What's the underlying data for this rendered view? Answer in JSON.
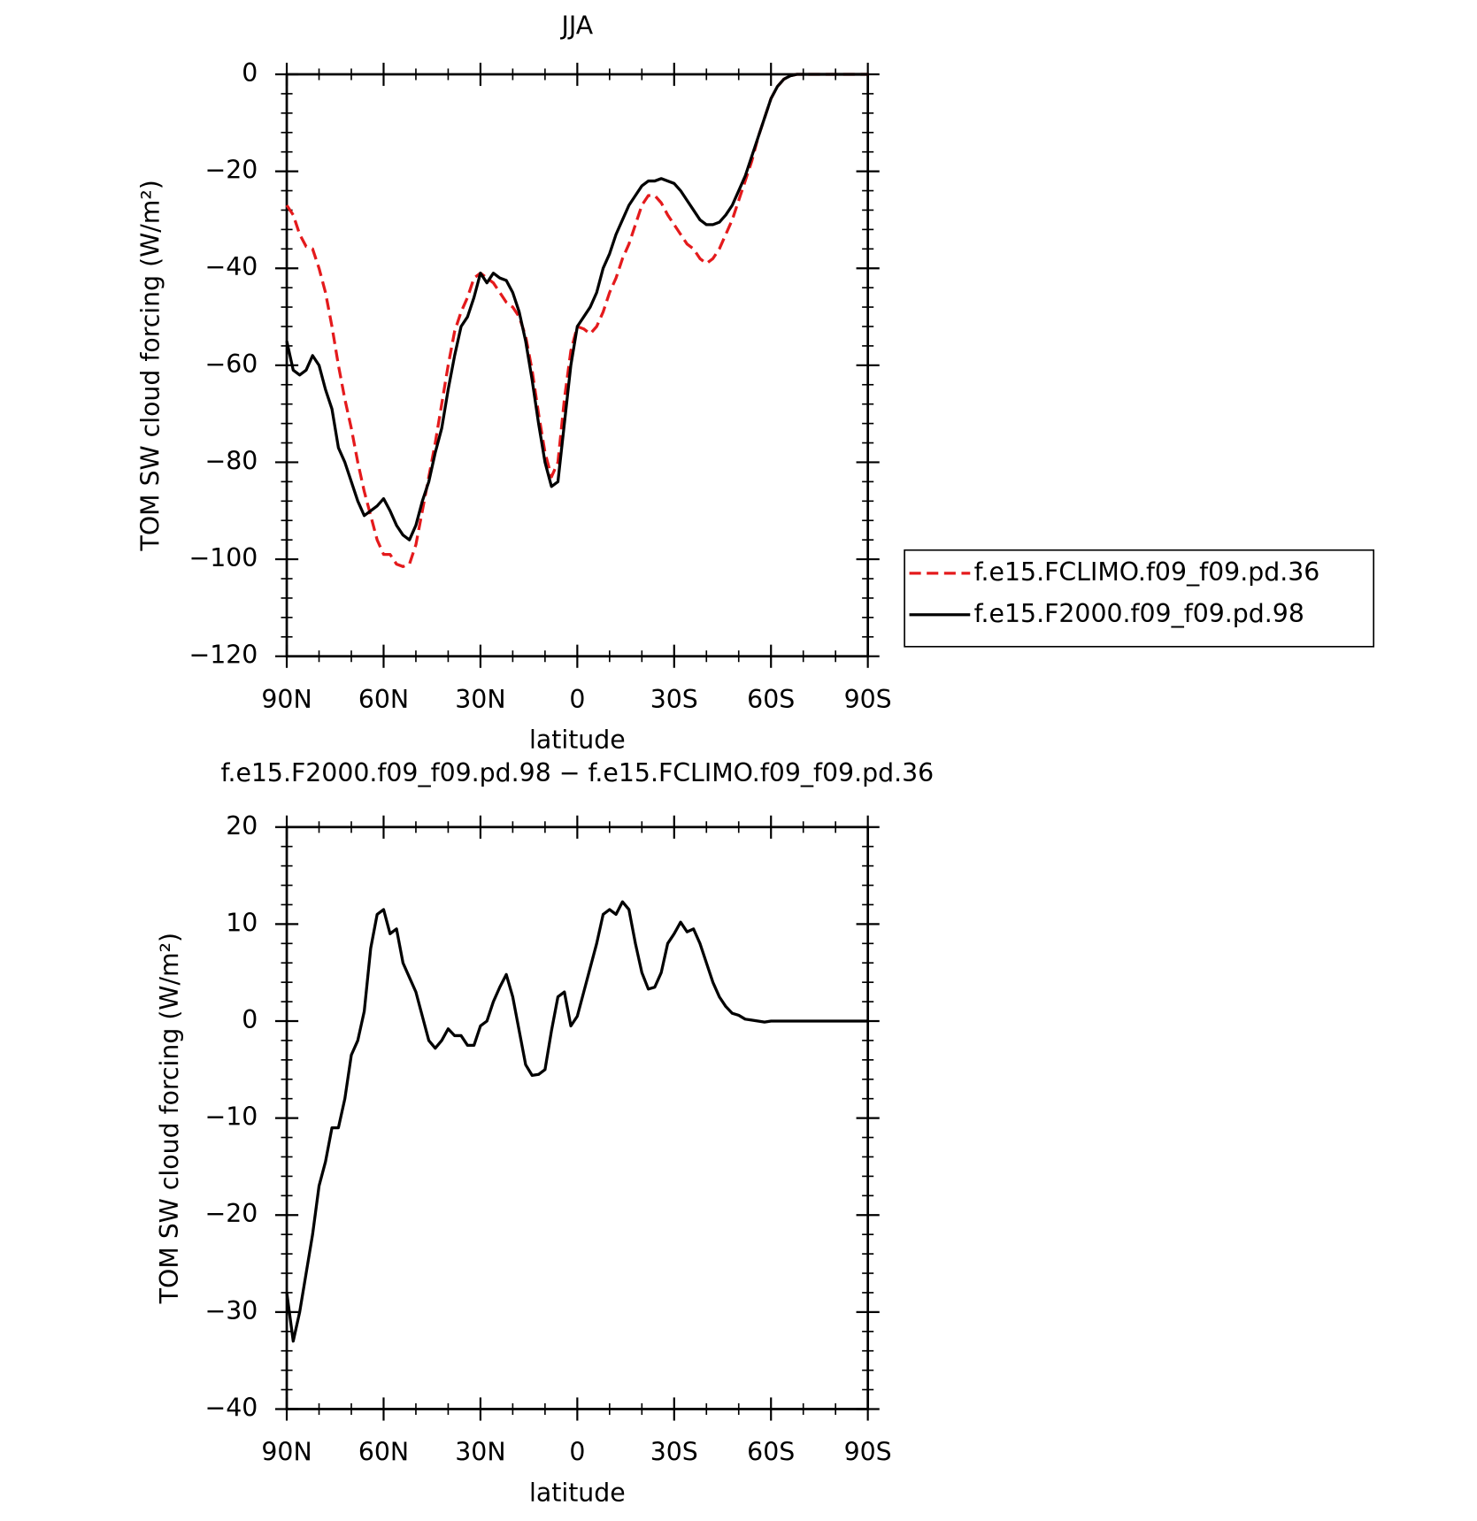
{
  "chart_data": [
    {
      "type": "line",
      "title": "JJA",
      "xlabel": "latitude",
      "ylabel": "TOM SW cloud forcing (W/m²)",
      "x": [
        90,
        88,
        86,
        84,
        82,
        80,
        78,
        76,
        74,
        72,
        70,
        68,
        66,
        64,
        62,
        60,
        58,
        56,
        54,
        52,
        50,
        48,
        46,
        44,
        42,
        40,
        38,
        36,
        34,
        32,
        30,
        28,
        26,
        24,
        22,
        20,
        18,
        16,
        14,
        12,
        10,
        8,
        6,
        4,
        2,
        0,
        -2,
        -4,
        -6,
        -8,
        -10,
        -12,
        -14,
        -16,
        -18,
        -20,
        -22,
        -24,
        -26,
        -28,
        -30,
        -32,
        -34,
        -36,
        -38,
        -40,
        -42,
        -44,
        -46,
        -48,
        -50,
        -52,
        -54,
        -56,
        -58,
        -60,
        -62,
        -64,
        -66,
        -68,
        -70,
        -80,
        -90
      ],
      "series": [
        {
          "name": "f.e15.FCLIMO.f09_f09.pd.36",
          "color": "#e41a1c",
          "linestyle": "dashed",
          "values": [
            -27,
            -29,
            -33,
            -35.5,
            -36,
            -40,
            -45,
            -52,
            -60,
            -67,
            -73,
            -80,
            -86,
            -91,
            -96,
            -99,
            -99,
            -101,
            -101.5,
            -101,
            -97,
            -90,
            -83,
            -76,
            -68,
            -60,
            -53,
            -49,
            -46,
            -42,
            -41,
            -42,
            -43,
            -45,
            -47,
            -48,
            -50,
            -54,
            -61,
            -70,
            -78,
            -83,
            -80,
            -67,
            -57,
            -52,
            -52.5,
            -53.5,
            -52,
            -49,
            -45,
            -42,
            -38,
            -35,
            -31,
            -27,
            -25,
            -25,
            -26.5,
            -29,
            -31,
            -33,
            -35,
            -36,
            -38,
            -39,
            -38,
            -36,
            -33,
            -30,
            -26,
            -22,
            -18,
            -13,
            -9,
            -5,
            -2.5,
            -1,
            -0.3,
            0,
            0,
            0,
            0
          ]
        },
        {
          "name": "f.e15.F2000.f09_f09.pd.98",
          "color": "#000000",
          "linestyle": "solid",
          "values": [
            -55,
            -61,
            -62,
            -61,
            -58,
            -60,
            -65,
            -69,
            -77,
            -80,
            -84,
            -88,
            -91,
            -90,
            -89,
            -87.5,
            -90,
            -93,
            -95,
            -96,
            -93,
            -88,
            -84,
            -78,
            -73,
            -65,
            -58,
            -52,
            -50,
            -46,
            -41,
            -43,
            -41,
            -42,
            -42.5,
            -45,
            -49,
            -55,
            -63,
            -72,
            -80,
            -85,
            -84,
            -72,
            -60,
            -52,
            -50,
            -48,
            -45,
            -40,
            -37,
            -33,
            -30,
            -27,
            -25,
            -23,
            -22,
            -22,
            -21.5,
            -22,
            -22.5,
            -24,
            -26,
            -28,
            -30,
            -31,
            -31,
            -30.5,
            -29,
            -27,
            -24,
            -21,
            -17,
            -13,
            -9,
            -5,
            -2.5,
            -1,
            -0.3,
            0,
            0,
            0,
            0
          ]
        }
      ],
      "xlim": [
        90,
        -90
      ],
      "xticks": [
        {
          "value": 90,
          "label": "90N"
        },
        {
          "value": 60,
          "label": "60N"
        },
        {
          "value": 30,
          "label": "30N"
        },
        0,
        {
          "value": -30,
          "label": "30S"
        },
        {
          "value": -60,
          "label": "60S"
        },
        {
          "value": -90,
          "label": "90S"
        }
      ],
      "xminorticks": [
        80,
        70,
        50,
        40,
        20,
        10,
        -10,
        -20,
        -40,
        -50,
        -70,
        -80
      ],
      "ylim": [
        -120,
        0
      ],
      "yticks": [
        {
          "value": -120,
          "label": "−120"
        },
        {
          "value": -100,
          "label": "−100"
        },
        {
          "value": -80,
          "label": "−80"
        },
        {
          "value": -60,
          "label": "−60"
        },
        {
          "value": -40,
          "label": "−40"
        },
        {
          "value": -20,
          "label": "−20"
        },
        0
      ],
      "yminorticks": [
        -116,
        -112,
        -108,
        -104,
        -96,
        -92,
        -88,
        -84,
        -76,
        -72,
        -68,
        -64,
        -56,
        -52,
        -48,
        -44,
        -36,
        -32,
        -28,
        -24,
        -16,
        -12,
        -8,
        -4
      ],
      "legend": "right"
    },
    {
      "type": "line",
      "title": "f.e15.F2000.f09_f09.pd.98 − f.e15.FCLIMO.f09_f09.pd.36",
      "xlabel": "latitude",
      "ylabel": "TOM SW cloud forcing (W/m²)",
      "x": [
        90,
        88,
        86,
        84,
        82,
        80,
        78,
        76,
        74,
        72,
        70,
        68,
        66,
        64,
        62,
        60,
        58,
        56,
        54,
        52,
        50,
        48,
        46,
        44,
        42,
        40,
        38,
        36,
        34,
        32,
        30,
        28,
        26,
        24,
        22,
        20,
        18,
        16,
        14,
        12,
        10,
        8,
        6,
        4,
        2,
        0,
        -2,
        -4,
        -6,
        -8,
        -10,
        -12,
        -14,
        -16,
        -18,
        -20,
        -22,
        -24,
        -26,
        -28,
        -30,
        -32,
        -34,
        -36,
        -38,
        -40,
        -42,
        -44,
        -46,
        -48,
        -50,
        -52,
        -54,
        -56,
        -58,
        -60,
        -70,
        -80,
        -90
      ],
      "series": [
        {
          "color": "#000000",
          "linestyle": "solid",
          "values": [
            -28,
            -33,
            -30,
            -26,
            -22,
            -17,
            -14.5,
            -11,
            -11,
            -8,
            -3.5,
            -2,
            1,
            7.5,
            11,
            11.5,
            9,
            9.5,
            6,
            4.5,
            3,
            0.5,
            -2,
            -2.8,
            -2,
            -0.8,
            -1.5,
            -1.5,
            -2.5,
            -2.5,
            -0.5,
            0,
            2,
            3.5,
            4.8,
            2.5,
            -1,
            -4.5,
            -5.6,
            -5.5,
            -5,
            -1,
            2.5,
            3,
            -0.5,
            0.5,
            3,
            5.5,
            8,
            11,
            11.5,
            11,
            12.3,
            11.5,
            8,
            5,
            3.3,
            3.5,
            5,
            8,
            9,
            10.2,
            9.2,
            9.5,
            8,
            6,
            4,
            2.5,
            1.5,
            0.8,
            0.6,
            0.2,
            0.1,
            0,
            -0.1,
            0,
            0,
            0,
            0
          ]
        }
      ],
      "xlim": [
        90,
        -90
      ],
      "xticks": [
        {
          "value": 90,
          "label": "90N"
        },
        {
          "value": 60,
          "label": "60N"
        },
        {
          "value": 30,
          "label": "30N"
        },
        0,
        {
          "value": -30,
          "label": "30S"
        },
        {
          "value": -60,
          "label": "60S"
        },
        {
          "value": -90,
          "label": "90S"
        }
      ],
      "xminorticks": [
        80,
        70,
        50,
        40,
        20,
        10,
        -10,
        -20,
        -40,
        -50,
        -70,
        -80
      ],
      "ylim": [
        -40,
        20
      ],
      "yticks": [
        {
          "value": -40,
          "label": "−40"
        },
        {
          "value": -30,
          "label": "−30"
        },
        {
          "value": -20,
          "label": "−20"
        },
        {
          "value": -10,
          "label": "−10"
        },
        0,
        10,
        20
      ],
      "yminorticks": [
        -38,
        -36,
        -34,
        -32,
        -28,
        -26,
        -24,
        -22,
        -18,
        -16,
        -14,
        -12,
        -8,
        -6,
        -4,
        -2,
        2,
        4,
        6,
        8,
        12,
        14,
        16,
        18
      ]
    }
  ]
}
